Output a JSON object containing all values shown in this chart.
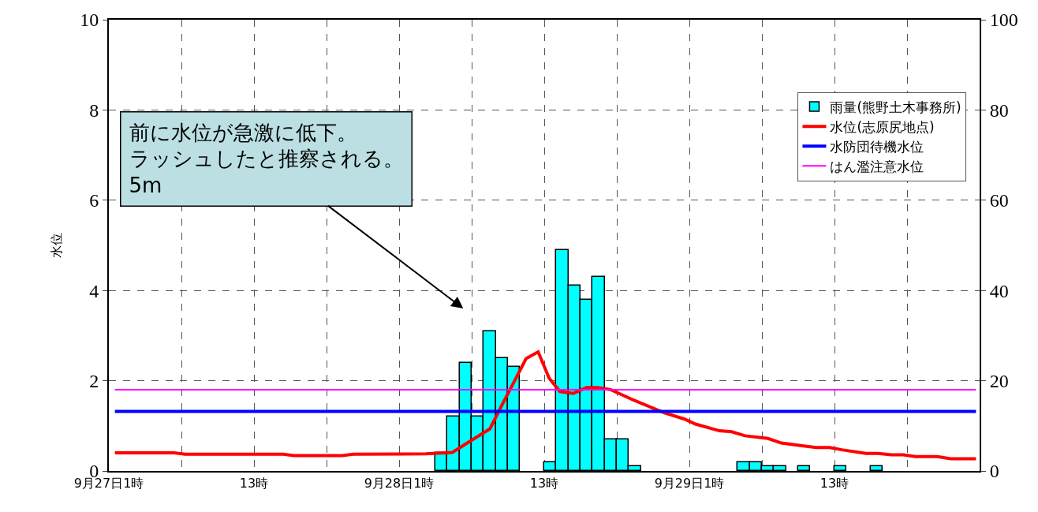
{
  "chart_data": {
    "type": "bar",
    "ylabel": "水位",
    "xlim": [
      "--09-27T01:00",
      "--09-30T01:00"
    ],
    "xticks": [
      {
        "value": "--09-27T01:00",
        "label": "9月27日1時"
      },
      {
        "value": "--09-27T07:00",
        "label": null
      },
      {
        "value": "--09-27T13:00",
        "label": "13時"
      },
      {
        "value": "--09-27T19:00",
        "label": null
      },
      {
        "value": "--09-28T01:00",
        "label": "9月28日1時"
      },
      {
        "value": "--09-28T07:00",
        "label": null
      },
      {
        "value": "--09-28T13:00",
        "label": "13時"
      },
      {
        "value": "--09-28T19:00",
        "label": null
      },
      {
        "value": "--09-29T01:00",
        "label": "9月29日1時"
      },
      {
        "value": "--09-29T07:00",
        "label": null
      },
      {
        "value": "--09-29T13:00",
        "label": "13時"
      },
      {
        "value": "--09-29T19:00",
        "label": null
      },
      {
        "value": "--09-30T01:00",
        "label": null
      }
    ],
    "ylim": [
      0,
      10
    ],
    "yticks": [
      0,
      2,
      4,
      6,
      8,
      10
    ],
    "y2lim": [
      0,
      100
    ],
    "y2ticks": [
      0,
      20,
      40,
      60,
      80,
      100
    ],
    "grid": true,
    "legend": "top right",
    "series": [
      {
        "name": "雨量(熊野土木事務所)",
        "axis": "y2",
        "color": "#00ffff",
        "x": [
          "--09-28T04:30",
          "--09-28T05:30",
          "--09-28T06:30",
          "--09-28T07:30",
          "--09-28T08:30",
          "--09-28T09:30",
          "--09-28T10:30",
          "--09-28T13:30",
          "--09-28T14:30",
          "--09-28T15:30",
          "--09-28T16:30",
          "--09-28T17:30",
          "--09-28T18:30",
          "--09-28T19:30",
          "--09-28T20:30",
          "--09-29T05:30",
          "--09-29T06:30",
          "--09-29T07:30",
          "--09-29T08:30",
          "--09-29T10:30",
          "--09-29T13:30",
          "--09-29T16:30"
        ],
        "values": [
          4,
          12,
          24,
          12,
          31,
          25,
          23,
          2,
          49,
          41,
          38,
          43,
          7,
          7,
          1,
          2,
          2,
          1,
          1,
          1,
          1,
          1
        ]
      },
      {
        "name": "水位(志原尻地点)",
        "type": "line",
        "color": "#ff0000",
        "x": [
          "--09-27T01:30",
          "--09-27T06:24",
          "--09-27T07:18",
          "--09-27T15:24",
          "--09-27T16:18",
          "--09-27T20:18",
          "--09-27T21:12",
          "--09-28T03:12",
          "--09-28T05:24",
          "--09-28T07:06",
          "--09-28T08:30",
          "--09-28T09:30",
          "--09-28T10:24",
          "--09-28T11:30",
          "--09-28T12:30",
          "--09-28T13:24",
          "--09-28T14:18",
          "--09-28T15:24",
          "--09-28T16:30",
          "--09-28T17:24",
          "--09-28T18:30",
          "--09-28T20:24",
          "--09-28T22:54",
          "--09-29T00:36",
          "--09-29T01:30",
          "--09-29T03:30",
          "--09-29T04:30",
          "--09-29T05:36",
          "--09-29T07:30",
          "--09-29T08:36",
          "--09-29T10:18",
          "--09-29T11:30",
          "--09-29T12:36",
          "--09-29T13:36",
          "--09-29T15:36",
          "--09-29T16:36",
          "--09-29T17:42",
          "--09-29T18:42",
          "--09-29T19:42",
          "--09-29T21:30",
          "--09-29T22:36",
          "--09-30T00:42"
        ],
        "values": [
          0.4,
          0.4,
          0.37,
          0.37,
          0.34,
          0.34,
          0.37,
          0.38,
          0.41,
          0.7,
          0.93,
          1.46,
          1.92,
          2.49,
          2.64,
          2.06,
          1.76,
          1.72,
          1.85,
          1.85,
          1.8,
          1.57,
          1.29,
          1.15,
          1.04,
          0.89,
          0.87,
          0.78,
          0.72,
          0.62,
          0.56,
          0.52,
          0.52,
          0.47,
          0.39,
          0.39,
          0.36,
          0.36,
          0.32,
          0.32,
          0.27,
          0.27
        ]
      }
    ],
    "ref_lines": [
      {
        "axis": "y",
        "value": 1.32,
        "label": "水防団待機水位",
        "color": "#0000ff"
      },
      {
        "axis": "y",
        "value": 1.8,
        "label": "はん濫注意水位",
        "color": "#ff00ff"
      }
    ],
    "annotations": [
      "前に水位が急激に低下。",
      "ラッシュしたと推察される。",
      "5m"
    ]
  }
}
